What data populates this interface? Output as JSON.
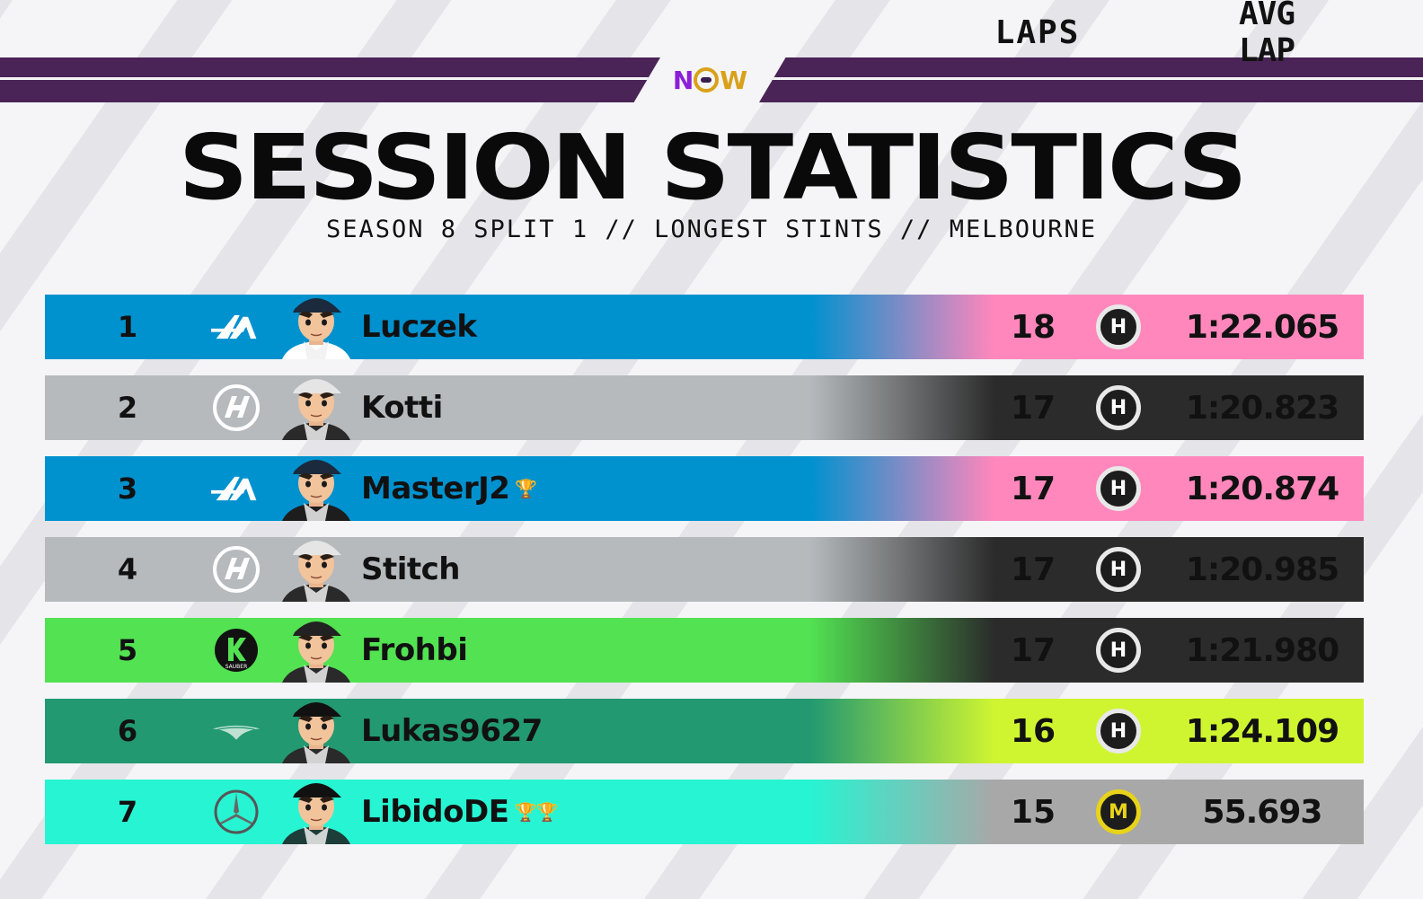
{
  "header": {
    "logo_text_n": "N",
    "logo_text_w": "W",
    "title": "SESSION STATISTICS",
    "subtitle": "SEASON 8 SPLIT 1 // LONGEST STINTS // MELBOURNE",
    "col_laps": "LAPS",
    "col_avg": "AVG LAP"
  },
  "rows": [
    {
      "pos": "1",
      "team": "alpine",
      "name": "Luczek",
      "trophy": "",
      "laps": "18",
      "tyre": "H",
      "avg": "1:22.065",
      "left_color": "#0091cf",
      "right_color": "#ff87bc",
      "text_color": "#111111",
      "tyre_type": "hard"
    },
    {
      "pos": "2",
      "team": "haas",
      "name": "Kotti",
      "trophy": "",
      "laps": "17",
      "tyre": "H",
      "avg": "1:20.823",
      "left_color": "#b6babd",
      "right_color": "#2b2b2b",
      "text_color": "#111111",
      "tyre_type": "hard"
    },
    {
      "pos": "3",
      "team": "alpine",
      "name": "MasterJ2",
      "trophy": "🏆",
      "laps": "17",
      "tyre": "H",
      "avg": "1:20.874",
      "left_color": "#0091cf",
      "right_color": "#ff87bc",
      "text_color": "#111111",
      "tyre_type": "hard"
    },
    {
      "pos": "4",
      "team": "haas",
      "name": "Stitch",
      "trophy": "",
      "laps": "17",
      "tyre": "H",
      "avg": "1:20.985",
      "left_color": "#b6babd",
      "right_color": "#2b2b2b",
      "text_color": "#111111",
      "tyre_type": "hard"
    },
    {
      "pos": "5",
      "team": "sauber",
      "name": "Frohbi",
      "trophy": "",
      "laps": "17",
      "tyre": "H",
      "avg": "1:21.980",
      "left_color": "#52e252",
      "right_color": "#2b2b2b",
      "text_color": "#111111",
      "tyre_type": "hard"
    },
    {
      "pos": "6",
      "team": "aston",
      "name": "Lukas9627",
      "trophy": "",
      "laps": "16",
      "tyre": "H",
      "avg": "1:24.109",
      "left_color": "#229971",
      "right_color": "#cff531",
      "text_color": "#111111",
      "tyre_type": "hard"
    },
    {
      "pos": "7",
      "team": "mercedes",
      "name": "LibidoDE",
      "trophy": "🏆🏆",
      "laps": "15",
      "tyre": "M",
      "avg": "55.693",
      "left_color": "#27f4d2",
      "right_color": "#a8a8a8",
      "text_color": "#111111",
      "tyre_type": "medium"
    }
  ],
  "team_logo_text": {
    "sauber": "SAUBER"
  }
}
